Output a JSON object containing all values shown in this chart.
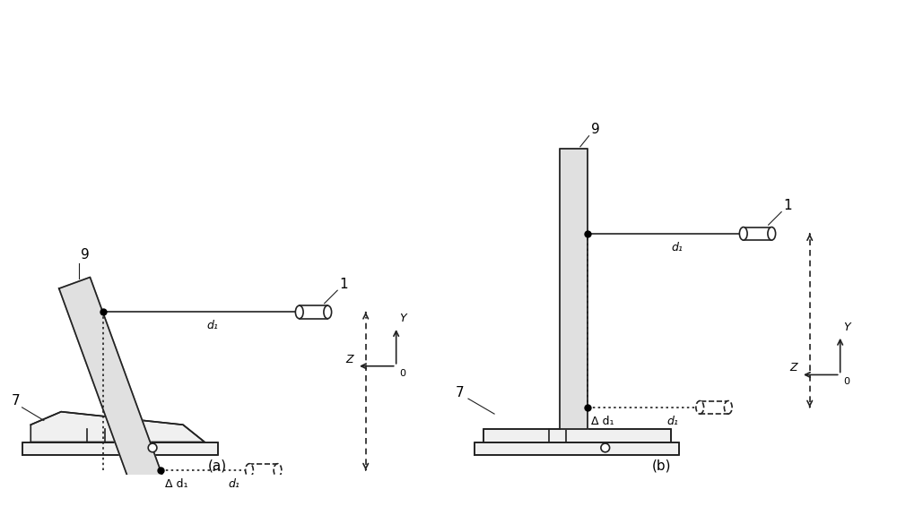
{
  "background": "#ffffff",
  "fig_width": 10.0,
  "fig_height": 5.75,
  "label_a": "(a)",
  "label_b": "(b)",
  "lc": "#222222",
  "lw": 1.2,
  "plate_fill": "#e0e0e0",
  "base_fill": "#f0f0f0",
  "label9": "9",
  "label1": "1",
  "label7": "7",
  "label_d1": "d₁",
  "label_delta_d1": "Δ d₁",
  "label_Y": "Y",
  "label_Z": "Z",
  "label_O": "0"
}
